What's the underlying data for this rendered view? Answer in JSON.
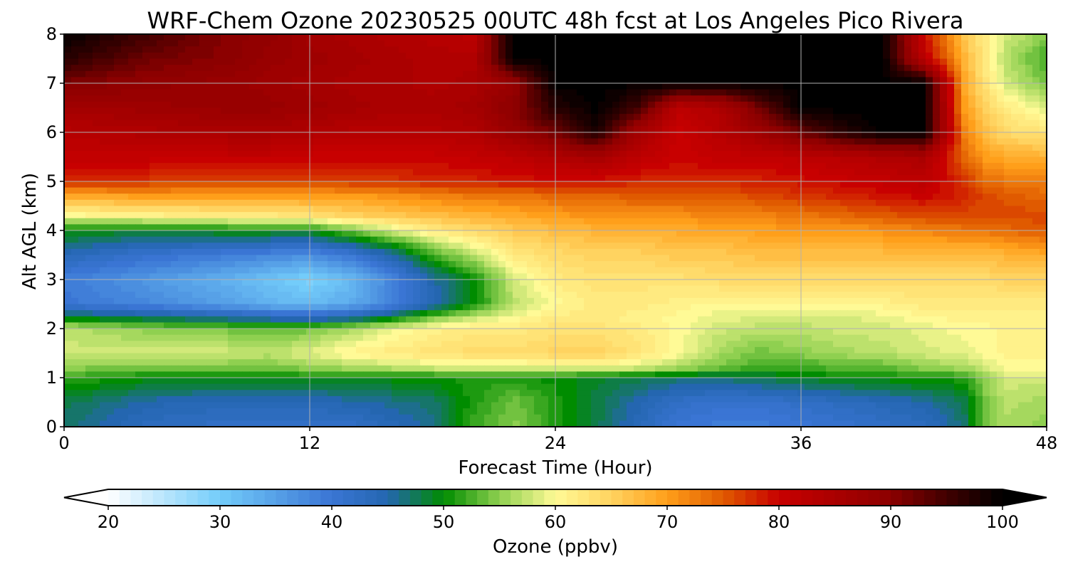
{
  "chart_data": {
    "type": "heatmap",
    "title": "WRF-Chem Ozone  20230525 00UTC 48h fcst at Los Angeles Pico Rivera",
    "xlabel": "Forecast Time (Hour)",
    "ylabel": "Alt AGL (km)",
    "xlim": [
      0,
      48
    ],
    "ylim": [
      0,
      8
    ],
    "x_ticks": [
      0,
      12,
      24,
      36,
      48
    ],
    "y_ticks": [
      0,
      1,
      2,
      3,
      4,
      5,
      6,
      7,
      8
    ],
    "grid": true,
    "x": [
      0,
      4,
      8,
      10,
      12,
      14,
      16,
      18,
      20,
      22,
      24,
      26,
      28,
      30,
      32,
      34,
      36,
      38,
      40,
      42,
      44,
      45,
      46,
      48
    ],
    "y": [
      0,
      0.5,
      1,
      1.2,
      1.5,
      2,
      2.2,
      2.5,
      3,
      3.5,
      4,
      4.3,
      4.7,
      5,
      5.5,
      6,
      6.5,
      7,
      7.5,
      8
    ],
    "z": [
      [
        47,
        43,
        42,
        42,
        42,
        42,
        44,
        46,
        52,
        55,
        51,
        48,
        44,
        40,
        39,
        39,
        40,
        41,
        42,
        43,
        47,
        54,
        56,
        55
      ],
      [
        48,
        45,
        44,
        44,
        44,
        45,
        46,
        47,
        51,
        54,
        51,
        48,
        45,
        42,
        41,
        41,
        42,
        43,
        44,
        45,
        48,
        54,
        57,
        56
      ],
      [
        52,
        50,
        50,
        50,
        50,
        50,
        50,
        50,
        51,
        51,
        50,
        49,
        48,
        47,
        47,
        48,
        49,
        50,
        50,
        51,
        51,
        55,
        58,
        58
      ],
      [
        55,
        54,
        54,
        54,
        55,
        56,
        57,
        58,
        58,
        58,
        59,
        59,
        58,
        56,
        54,
        52,
        52,
        53,
        53,
        55,
        56,
        58,
        60,
        60
      ],
      [
        58,
        58,
        58,
        57,
        59,
        61,
        62,
        63,
        64,
        64,
        65,
        65,
        63,
        60,
        56,
        54,
        55,
        56,
        57,
        58,
        59,
        60,
        61,
        61
      ],
      [
        57,
        55,
        54,
        53,
        54,
        56,
        59,
        61,
        62,
        62,
        63,
        63,
        62,
        60,
        58,
        57,
        57,
        58,
        58,
        59,
        60,
        60,
        61,
        61
      ],
      [
        50,
        48,
        46,
        45,
        44,
        46,
        50,
        55,
        58,
        60,
        62,
        62,
        61,
        60,
        59,
        58,
        58,
        58,
        59,
        60,
        61,
        61,
        61,
        61
      ],
      [
        40,
        38,
        35,
        33,
        32,
        34,
        38,
        44,
        50,
        57,
        60,
        62,
        62,
        61,
        60,
        60,
        60,
        60,
        61,
        62,
        62,
        62,
        62,
        62
      ],
      [
        39,
        36,
        33,
        31,
        29,
        32,
        38,
        45,
        50,
        58,
        62,
        63,
        63,
        63,
        64,
        64,
        64,
        64,
        64,
        64,
        64,
        64,
        65,
        65
      ],
      [
        44,
        41,
        39,
        38,
        37,
        40,
        45,
        52,
        57,
        62,
        64,
        65,
        65,
        66,
        66,
        67,
        67,
        67,
        67,
        67,
        67,
        67,
        68,
        69
      ],
      [
        50,
        49,
        50,
        50,
        50,
        54,
        58,
        62,
        64,
        66,
        67,
        68,
        68,
        69,
        69,
        70,
        70,
        70,
        71,
        72,
        73,
        73,
        74,
        75
      ],
      [
        60,
        61,
        62,
        62,
        63,
        65,
        66,
        67,
        68,
        69,
        70,
        71,
        71,
        71,
        72,
        72,
        73,
        74,
        75,
        76,
        76,
        76,
        76,
        76
      ],
      [
        69,
        70,
        70,
        70,
        70,
        70,
        71,
        72,
        73,
        73,
        74,
        74,
        75,
        75,
        75,
        76,
        77,
        78,
        79,
        80,
        78,
        76,
        75,
        74
      ],
      [
        78,
        77,
        76,
        76,
        76,
        77,
        77,
        78,
        78,
        79,
        79,
        79,
        78,
        78,
        78,
        78,
        79,
        80,
        81,
        82,
        77,
        74,
        73,
        72
      ],
      [
        81,
        81,
        81,
        81,
        80,
        80,
        80,
        80,
        81,
        82,
        84,
        86,
        82,
        80,
        81,
        81,
        82,
        83,
        84,
        85,
        74,
        70,
        69,
        68
      ],
      [
        83,
        84,
        85,
        85,
        84,
        83,
        83,
        83,
        84,
        88,
        92,
        98,
        86,
        80,
        83,
        87,
        92,
        97,
        100,
        100,
        72,
        67,
        64,
        63
      ],
      [
        86,
        87,
        88,
        88,
        87,
        86,
        85,
        85,
        86,
        90,
        97,
        100,
        95,
        82,
        84,
        92,
        100,
        100,
        100,
        100,
        70,
        65,
        62,
        58
      ],
      [
        91,
        89,
        88,
        87,
        86,
        85,
        85,
        84,
        85,
        88,
        100,
        100,
        100,
        100,
        100,
        100,
        100,
        100,
        100,
        100,
        69,
        63,
        58,
        54
      ],
      [
        97,
        92,
        90,
        88,
        87,
        86,
        85,
        84,
        84,
        100,
        100,
        100,
        100,
        100,
        100,
        100,
        100,
        100,
        100,
        82,
        68,
        62,
        57,
        52
      ],
      [
        100,
        95,
        90,
        89,
        86,
        85,
        84,
        83,
        82,
        100,
        100,
        100,
        100,
        100,
        100,
        100,
        100,
        100,
        100,
        80,
        66,
        62,
        58,
        55
      ]
    ],
    "colorbar": {
      "label": "Ozone  (ppbv)",
      "vmin": 20,
      "vmax": 100,
      "ticks": [
        20,
        30,
        40,
        50,
        60,
        70,
        80,
        90,
        100
      ],
      "extend": "both",
      "colors": [
        {
          "v": 20,
          "c": "#ffffff"
        },
        {
          "v": 30,
          "c": "#73ccfa"
        },
        {
          "v": 40,
          "c": "#3a75d4"
        },
        {
          "v": 45,
          "c": "#2466b0"
        },
        {
          "v": 50,
          "c": "#008c00"
        },
        {
          "v": 55,
          "c": "#8fd050"
        },
        {
          "v": 60,
          "c": "#fffa96"
        },
        {
          "v": 65,
          "c": "#ffd360"
        },
        {
          "v": 70,
          "c": "#ff9f1a"
        },
        {
          "v": 75,
          "c": "#e05a00"
        },
        {
          "v": 80,
          "c": "#c80000"
        },
        {
          "v": 90,
          "c": "#8c0000"
        },
        {
          "v": 95,
          "c": "#400000"
        },
        {
          "v": 100,
          "c": "#000000"
        }
      ]
    }
  }
}
